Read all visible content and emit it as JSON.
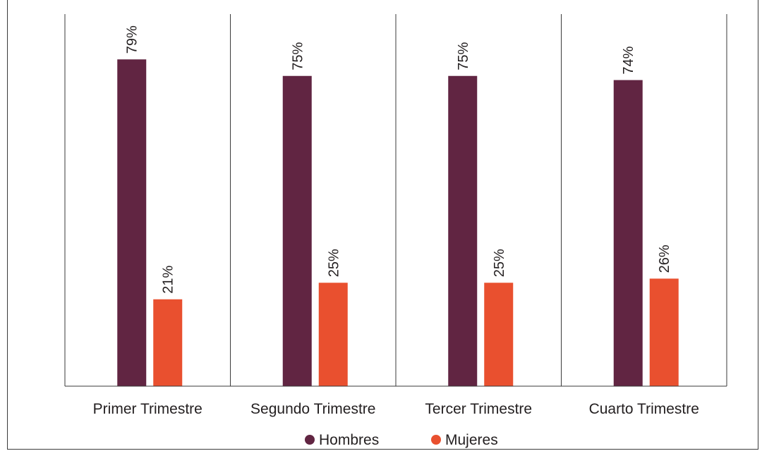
{
  "chart_data": {
    "type": "bar",
    "categories": [
      "Primer Trimestre",
      "Segundo Trimestre",
      "Tercer Trimestre",
      "Cuarto Trimestre"
    ],
    "series": [
      {
        "name": "Hombres",
        "values": [
          79,
          75,
          75,
          74
        ],
        "labels": [
          "79%",
          "75%",
          "75%",
          "74%"
        ],
        "color": "#612542"
      },
      {
        "name": "Mujeres",
        "values": [
          21,
          25,
          25,
          26
        ],
        "labels": [
          "21%",
          "25%",
          "25%",
          "26%"
        ],
        "color": "#e9502f"
      }
    ],
    "title": "",
    "xlabel": "",
    "ylabel": "",
    "ylim": [
      0,
      100
    ],
    "grid": false,
    "category_separators": true,
    "legend_position": "bottom"
  }
}
